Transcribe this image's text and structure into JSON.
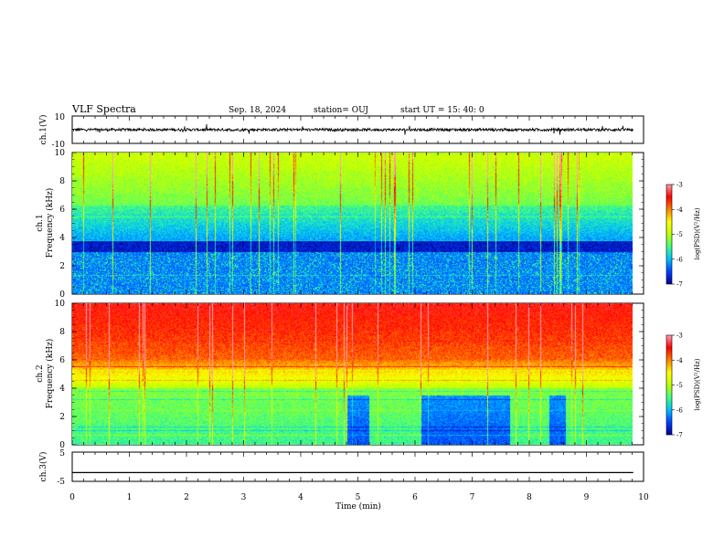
{
  "header": {
    "title": "VLF Spectra",
    "date": "Sep. 18, 2024",
    "station": "station= OUJ",
    "start": "start  UT =   15: 40: 0"
  },
  "chart_data": [
    {
      "type": "line",
      "panel": "waveform-ch1",
      "ylabel": "ch.1(V)",
      "ylim": [
        -10,
        10
      ],
      "yticks": [
        "10",
        "-10"
      ],
      "baseline": 0,
      "amplitude": 2
    },
    {
      "type": "heatmap",
      "panel": "spectrogram-ch1",
      "ylabel": "ch.1\nFrequency (kHz)",
      "ylim": [
        0,
        10
      ],
      "yticks": [
        "0",
        "2",
        "4",
        "6",
        "8",
        "10"
      ],
      "colorbar": {
        "label": "log(PSD)(V²/Hz)",
        "range": [
          -7,
          -3
        ],
        "ticks": [
          "-3",
          "-4",
          "-5",
          "-6",
          "-7"
        ],
        "colors": [
          "#000090",
          "#0040ff",
          "#00c0ff",
          "#40ff80",
          "#c0ff00",
          "#ffff00",
          "#ff8000",
          "#ff0000",
          "#ffa0b0"
        ]
      }
    },
    {
      "type": "heatmap",
      "panel": "spectrogram-ch2",
      "ylabel": "ch.2\nFrequency (kHz)",
      "ylim": [
        0,
        10
      ],
      "yticks": [
        "0",
        "2",
        "4",
        "6",
        "8",
        "10"
      ],
      "colorbar": {
        "label": "log(PSD)(V²/Hz)",
        "range": [
          -7,
          -3
        ],
        "ticks": [
          "-3",
          "-4",
          "-5",
          "-6",
          "-7"
        ],
        "colors": [
          "#000090",
          "#0040ff",
          "#00c0ff",
          "#40ff80",
          "#c0ff00",
          "#ffff00",
          "#ff8000",
          "#ff0000",
          "#ffa0b0"
        ]
      }
    },
    {
      "type": "line",
      "panel": "waveform-ch3",
      "ylabel": "ch.3(V)",
      "ylim": [
        -5,
        5
      ],
      "yticks": [
        "5",
        "-5"
      ],
      "baseline": -2,
      "amplitude": 0
    }
  ],
  "xaxis": {
    "label": "Time  (min)",
    "range": [
      0,
      10
    ],
    "data_end": 9.82,
    "ticks": [
      "0",
      "1",
      "2",
      "3",
      "4",
      "5",
      "6",
      "7",
      "8",
      "9",
      "10"
    ]
  }
}
